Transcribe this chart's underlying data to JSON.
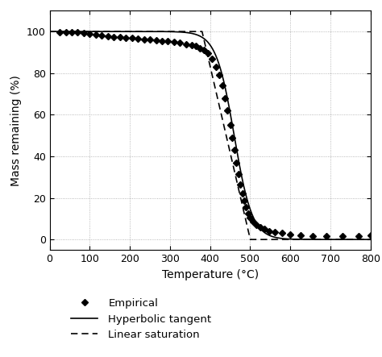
{
  "title": "",
  "xlabel": "Temperature (°C)",
  "ylabel": "Mass remaining (%)",
  "xlim": [
    0,
    800
  ],
  "ylim": [
    -5,
    110
  ],
  "xticks": [
    0,
    100,
    200,
    300,
    400,
    500,
    600,
    700,
    800
  ],
  "yticks": [
    0,
    20,
    40,
    60,
    80,
    100
  ],
  "tanh_T0": 460,
  "tanh_scale": 45,
  "linear_T_start": 380,
  "linear_T_end": 500,
  "empirical_T": [
    25,
    40,
    55,
    70,
    85,
    100,
    115,
    130,
    145,
    160,
    175,
    190,
    205,
    220,
    235,
    250,
    265,
    280,
    295,
    310,
    325,
    340,
    355,
    365,
    375,
    385,
    395,
    405,
    415,
    422,
    430,
    437,
    443,
    450,
    455,
    460,
    465,
    470,
    475,
    480,
    485,
    490,
    495,
    500,
    507,
    515,
    525,
    535,
    548,
    562,
    580,
    600,
    625,
    655,
    690,
    730,
    770,
    800
  ],
  "empirical_y": [
    99.5,
    99.5,
    99.5,
    99.5,
    99.2,
    99.0,
    98.5,
    98.0,
    97.8,
    97.5,
    97.2,
    97.0,
    96.8,
    96.5,
    96.2,
    96.0,
    95.8,
    95.5,
    95.2,
    95.0,
    94.5,
    94.0,
    93.5,
    93.0,
    92.0,
    91.0,
    89.5,
    87.0,
    83.0,
    79.0,
    74.0,
    68.0,
    62.0,
    55.0,
    49.0,
    43.0,
    37.0,
    31.5,
    26.5,
    22.0,
    18.5,
    15.5,
    12.5,
    10.5,
    8.5,
    7.0,
    6.0,
    5.0,
    4.0,
    3.5,
    3.0,
    2.5,
    2.0,
    1.5,
    1.5,
    1.5,
    1.5,
    2.0
  ],
  "line_color": "#000000",
  "marker_color": "#000000",
  "legend_labels": [
    "Empirical",
    "Hyperbolic tangent",
    "Linear saturation"
  ],
  "figsize": [
    4.74,
    4.43
  ],
  "dpi": 100
}
